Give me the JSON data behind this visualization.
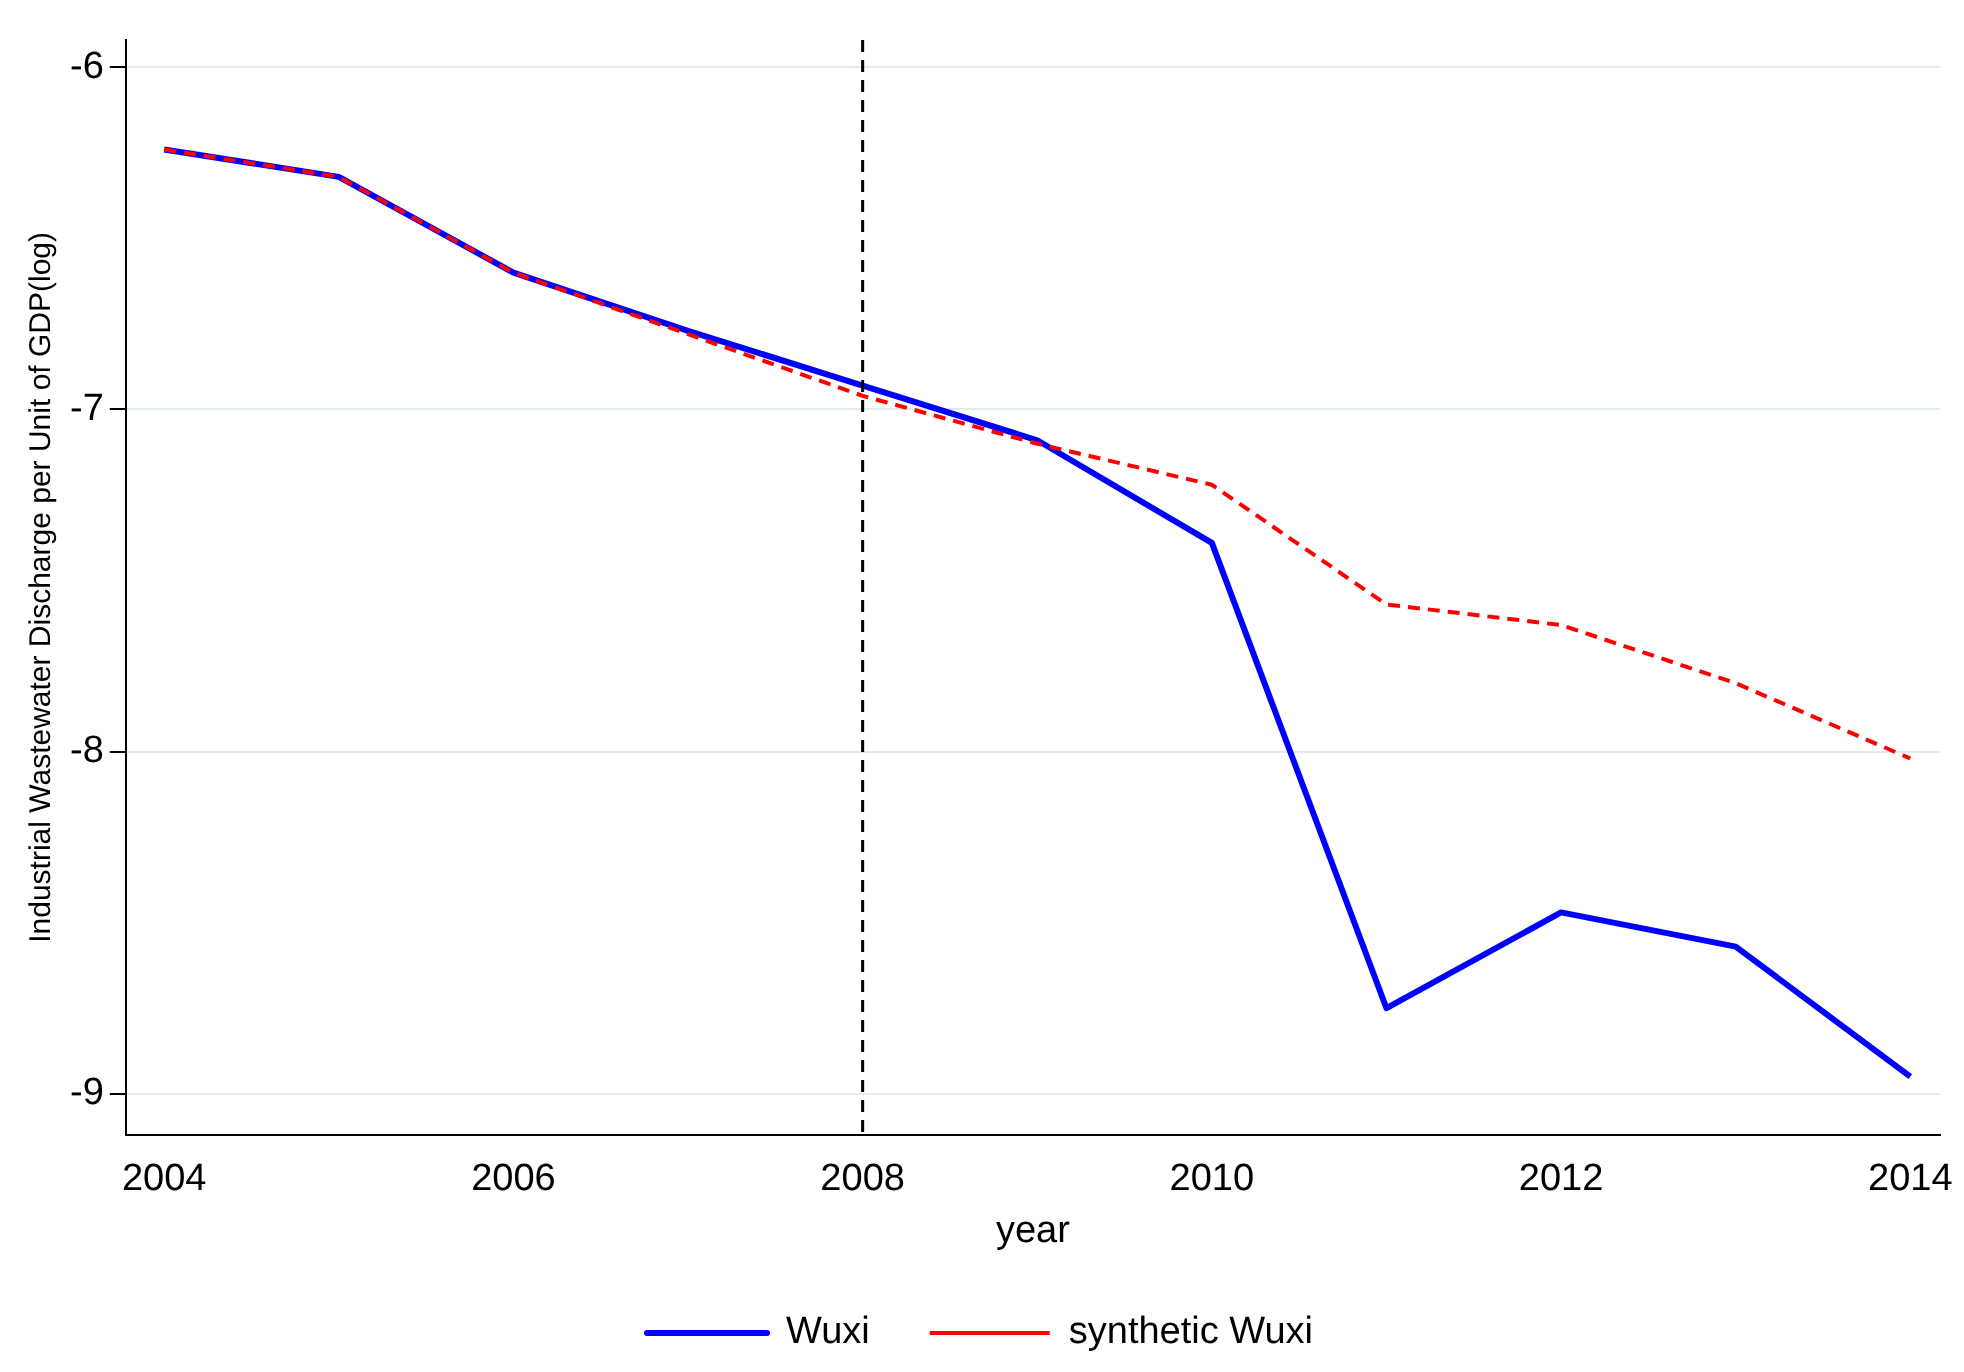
{
  "chart_data": {
    "type": "line",
    "xlabel": "year",
    "ylabel": "Industrial Wastewater Discharge per Unit of GDP(log)",
    "x": [
      2004,
      2005,
      2006,
      2007,
      2008,
      2009,
      2010,
      2011,
      2012,
      2013,
      2014
    ],
    "series": [
      {
        "name": "Wuxi",
        "color": "#0000ff",
        "line_style": "solid",
        "values": [
          -6.24,
          -6.32,
          -6.6,
          -6.77,
          -6.93,
          -7.09,
          -7.39,
          -8.75,
          -8.47,
          -8.57,
          -8.95
        ]
      },
      {
        "name": "synthetic Wuxi",
        "color": "#ff0000",
        "line_style": "dashed",
        "values": [
          -6.24,
          -6.32,
          -6.6,
          -6.78,
          -6.96,
          -7.1,
          -7.22,
          -7.57,
          -7.63,
          -7.8,
          -8.02
        ]
      }
    ],
    "xlim": [
      2003.78,
      2014.17
    ],
    "xticks": [
      2004,
      2006,
      2008,
      2010,
      2012,
      2014
    ],
    "ylim": [
      -9.12,
      -5.92
    ],
    "yticks": [
      -9,
      -8,
      -7,
      -6
    ],
    "ref_lines": [
      {
        "axis": "x",
        "value": 2008,
        "color": "#000000",
        "line_style": "dashed"
      }
    ],
    "grid": "y",
    "legend": "bottom",
    "marker": "none"
  }
}
